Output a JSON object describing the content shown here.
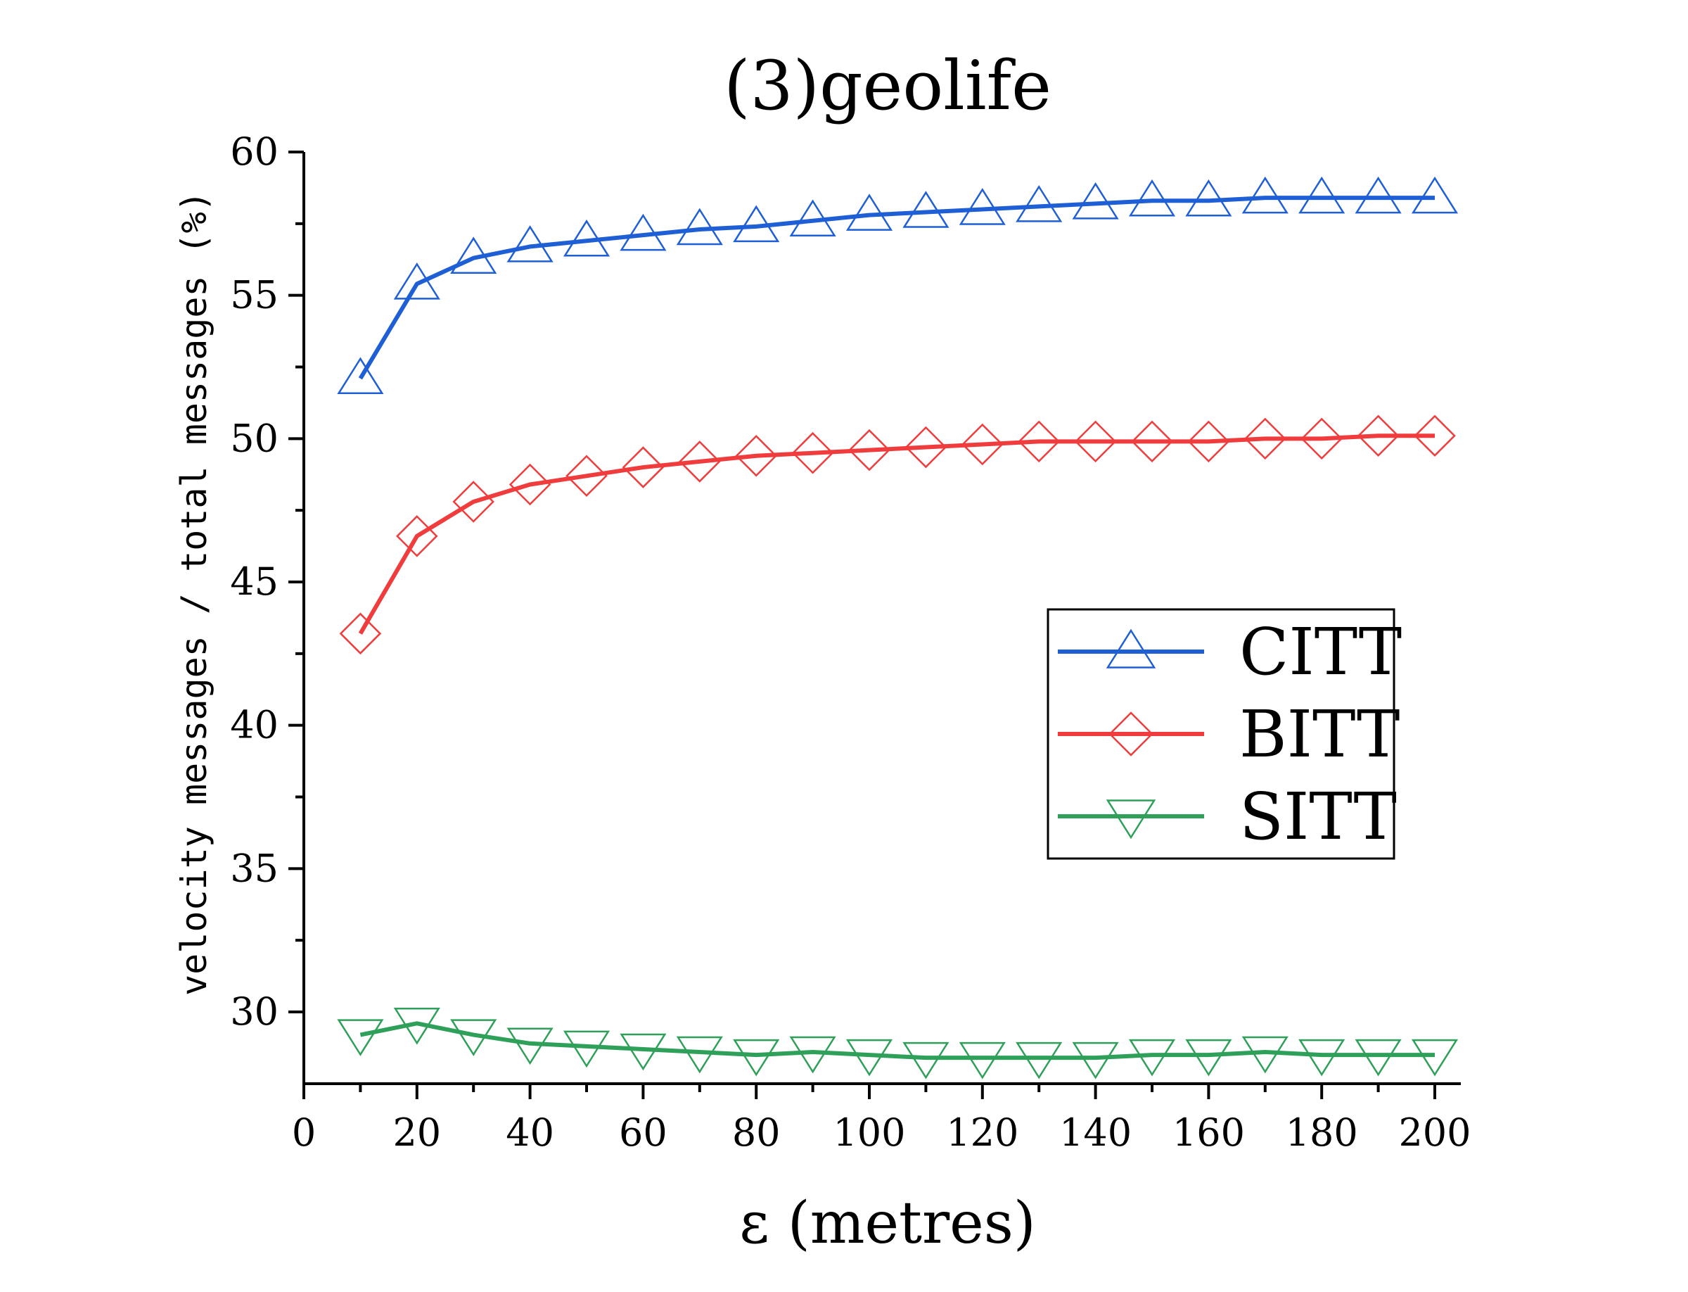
{
  "chart_data": {
    "type": "line",
    "title": "(3)geolife",
    "xlabel": "ε  (metres)",
    "ylabel": "velocity messages / total messages (%)",
    "x": [
      10,
      20,
      30,
      40,
      50,
      60,
      70,
      80,
      90,
      100,
      110,
      120,
      130,
      140,
      150,
      160,
      170,
      180,
      190,
      200
    ],
    "xlim": [
      0,
      205
    ],
    "ylim": [
      27.5,
      60
    ],
    "xticks": [
      0,
      20,
      40,
      60,
      80,
      100,
      120,
      140,
      160,
      180,
      200
    ],
    "yticks": [
      30,
      35,
      40,
      45,
      50,
      55,
      60
    ],
    "xtick_labels": [
      "0",
      "20",
      "40",
      "60",
      "80",
      "100",
      "120",
      "140",
      "160",
      "180",
      "200"
    ],
    "ytick_labels": [
      "30",
      "35",
      "40",
      "45",
      "50",
      "55",
      "60"
    ],
    "grid": false,
    "legend_position": "center-right",
    "series": [
      {
        "name": "CITT",
        "color": "#1f5fd6",
        "marker": "triangle-up",
        "values": [
          52.1,
          55.4,
          56.3,
          56.7,
          56.9,
          57.1,
          57.3,
          57.4,
          57.6,
          57.8,
          57.9,
          58.0,
          58.1,
          58.2,
          58.3,
          58.3,
          58.4,
          58.4,
          58.4,
          58.4
        ]
      },
      {
        "name": "BITT",
        "color": "#f03c3c",
        "marker": "diamond",
        "values": [
          43.2,
          46.6,
          47.8,
          48.4,
          48.7,
          49.0,
          49.2,
          49.4,
          49.5,
          49.6,
          49.7,
          49.8,
          49.9,
          49.9,
          49.9,
          49.9,
          50.0,
          50.0,
          50.1,
          50.1
        ]
      },
      {
        "name": "SITT",
        "color": "#2ea05a",
        "marker": "triangle-down",
        "values": [
          29.2,
          29.6,
          29.2,
          28.9,
          28.8,
          28.7,
          28.6,
          28.5,
          28.6,
          28.5,
          28.4,
          28.4,
          28.4,
          28.4,
          28.5,
          28.5,
          28.6,
          28.5,
          28.5,
          28.5
        ]
      }
    ]
  }
}
